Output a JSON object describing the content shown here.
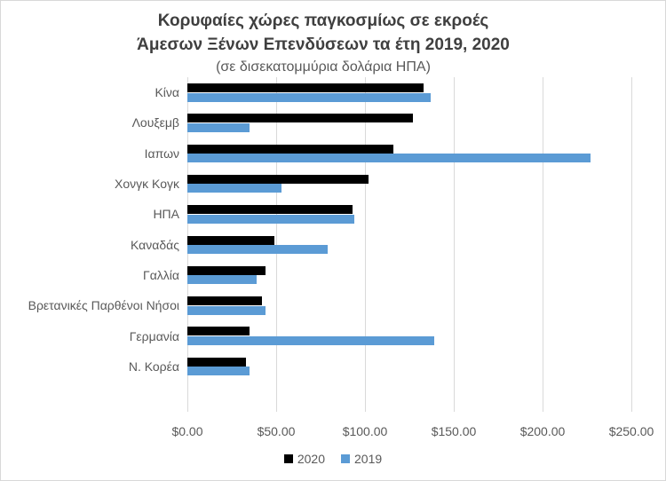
{
  "title": {
    "line1": "Κορυφαίες χώρες παγκοσμίως σε εκροές",
    "line2": "Άμεσων Ξένων Επενδύσεων τα έτη 2019, 2020",
    "subtitle": "(σε δισεκατομμύρια δολάρια ΗΠΑ)"
  },
  "chart_data": {
    "type": "bar",
    "orientation": "horizontal",
    "title": "Κορυφαίες χώρες παγκοσμίως σε εκροές Άμεσων Ξένων Επενδύσεων τα έτη 2019, 2020",
    "subtitle": "(σε δισεκατομμύρια δολάρια ΗΠΑ)",
    "categories": [
      "Κίνα",
      "Λουξεμβ",
      "Ιαπων",
      "Χονγκ Κογκ",
      "ΗΠΑ",
      "Καναδάς",
      "Γαλλία",
      "Βρετανικές Παρθένοι Νήσοι",
      "Γερμανία",
      "Ν. Κορέα"
    ],
    "series": [
      {
        "name": "2020",
        "color": "#000000",
        "values": [
          133,
          127,
          116,
          102,
          93,
          49,
          44,
          42,
          35,
          33
        ]
      },
      {
        "name": "2019",
        "color": "#5b9bd5",
        "values": [
          137,
          35,
          227,
          53,
          94,
          79,
          39,
          44,
          139,
          35
        ]
      }
    ],
    "x_axis": {
      "tick_labels": [
        "$0.00",
        "$50.00",
        "$100.00",
        "$150.00",
        "$200.00",
        "$250.00"
      ],
      "tick_values": [
        0,
        50,
        100,
        150,
        200,
        250
      ],
      "min": 0,
      "max": 250
    },
    "grid": true,
    "legend_position": "bottom",
    "legend": [
      "2020",
      "2019"
    ]
  },
  "colors": {
    "series_2020": "#000000",
    "series_2019": "#5b9bd5",
    "gridline": "#d9d9d9",
    "title_text": "#3f3f3f",
    "axis_text": "#595959",
    "frame_border": "#d8d8d8"
  }
}
